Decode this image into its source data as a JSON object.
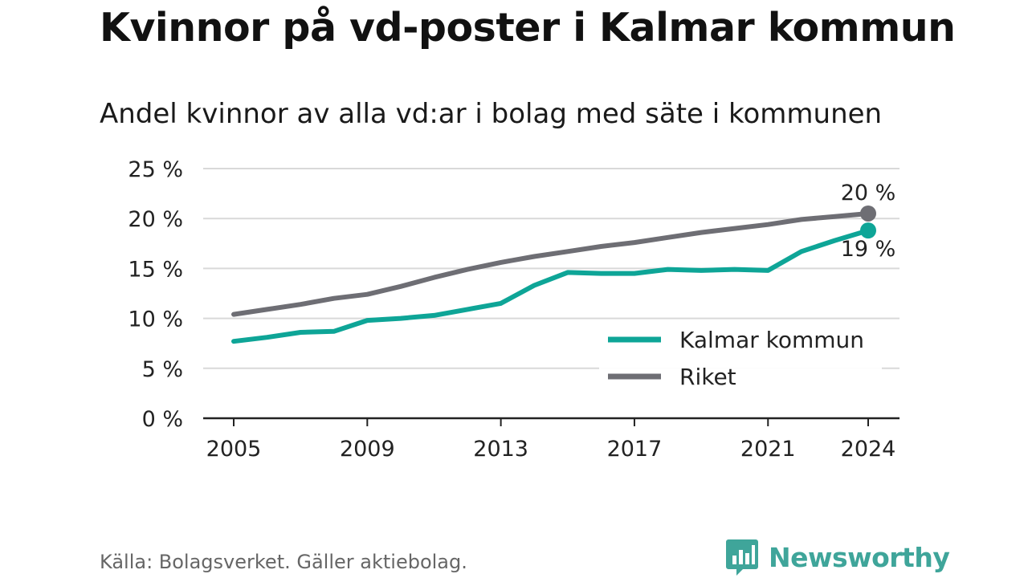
{
  "header": {
    "title": "Kvinnor på vd-poster i Kalmar kommun",
    "subtitle": "Andel kvinnor av alla vd:ar i bolag med säte i kommunen"
  },
  "footer": {
    "source": "Källa: Bolagsverket. Gäller aktiebolag.",
    "brand": "Newsworthy",
    "brand_icon": "bar-chart-speech-bubble-icon"
  },
  "colors": {
    "kalmar": "#0ea597",
    "riket": "#6e6e74",
    "grid": "#d9d9d9",
    "axis": "#222222",
    "brand": "#3fa59a"
  },
  "chart_data": {
    "type": "line",
    "x": [
      2005,
      2006,
      2007,
      2008,
      2009,
      2010,
      2011,
      2012,
      2013,
      2014,
      2015,
      2016,
      2017,
      2018,
      2019,
      2020,
      2021,
      2022,
      2023,
      2024
    ],
    "series": [
      {
        "name": "Kalmar kommun",
        "color": "#0ea597",
        "values": [
          7.7,
          8.1,
          8.6,
          8.7,
          9.8,
          10.0,
          10.3,
          10.9,
          11.5,
          13.3,
          14.6,
          14.5,
          14.5,
          14.9,
          14.8,
          14.9,
          14.8,
          16.7,
          17.8,
          18.8
        ],
        "end_label": "19 %"
      },
      {
        "name": "Riket",
        "color": "#6e6e74",
        "values": [
          10.4,
          10.9,
          11.4,
          12.0,
          12.4,
          13.2,
          14.1,
          14.9,
          15.6,
          16.2,
          16.7,
          17.2,
          17.6,
          18.1,
          18.6,
          19.0,
          19.4,
          19.9,
          20.2,
          20.5
        ],
        "end_label": "20 %"
      }
    ],
    "xticks": [
      2005,
      2009,
      2013,
      2017,
      2021,
      2024
    ],
    "xtick_labels": [
      "2005",
      "2009",
      "2013",
      "2017",
      "2021",
      "2024"
    ],
    "yticks": [
      0,
      5,
      10,
      15,
      20,
      25
    ],
    "ytick_labels": [
      "0 %",
      "5 %",
      "10 %",
      "15 %",
      "20 %",
      "25 %"
    ],
    "ylim": [
      0,
      25
    ],
    "xlim": [
      2005,
      2024
    ],
    "grid": true,
    "legend": "inside-bottom-right",
    "title": "Kvinnor på vd-poster i Kalmar kommun",
    "subtitle": "Andel kvinnor av alla vd:ar i bolag med säte i kommunen",
    "xlabel": "",
    "ylabel": ""
  }
}
